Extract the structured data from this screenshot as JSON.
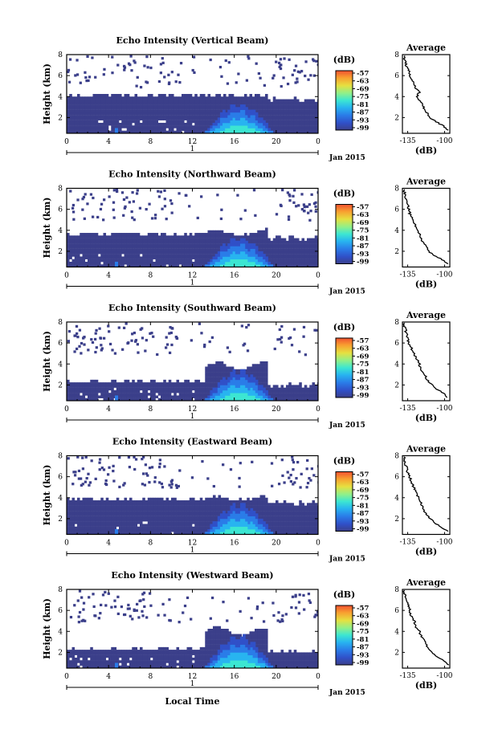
{
  "chart_data": [
    {
      "type": "heatmap",
      "title": "Echo Intensity (Vertical Beam)",
      "ylabel": "Height (km)",
      "x_ticks": [
        "0",
        "4",
        "8",
        "12",
        "16",
        "20",
        "0"
      ],
      "x_range": [
        0,
        24
      ],
      "y_ticks": [
        "2",
        "4",
        "6",
        "8"
      ],
      "y_range": [
        0.5,
        8.0
      ],
      "date_day": "1",
      "date_label": "Jan 2015",
      "colorbar": {
        "title": "(dB)",
        "ticks": [
          "-57",
          "-63",
          "-69",
          "-75",
          "-81",
          "-87",
          "-93",
          "-99"
        ]
      },
      "clutter_top_km": 4.0,
      "burst_top_km": 3.3,
      "profile": {
        "title": "Average",
        "xlabel": "(dB)",
        "x_ticks": [
          "-135",
          "-100"
        ],
        "x_range": [
          -140,
          -95
        ],
        "y_range": [
          0.5,
          8.0
        ],
        "y_ticks": [
          "2",
          "4",
          "6",
          "8"
        ],
        "heights": [
          0.8,
          1.2,
          1.6,
          2.0,
          2.4,
          2.8,
          3.2,
          3.6,
          4.0,
          4.4,
          4.8,
          5.2,
          5.6,
          6.0,
          6.4,
          6.8,
          7.2,
          7.6,
          8.0
        ],
        "values": [
          -97,
          -101,
          -108,
          -114,
          -116,
          -119,
          -121,
          -124,
          -126,
          -124,
          -127,
          -129,
          -131,
          -133,
          -134,
          -136,
          -137,
          -138,
          -139
        ]
      }
    },
    {
      "type": "heatmap",
      "title": "Echo Intensity (Northward Beam)",
      "ylabel": "Height (km)",
      "x_ticks": [
        "0",
        "4",
        "8",
        "12",
        "16",
        "20",
        "0"
      ],
      "x_range": [
        0,
        24
      ],
      "y_ticks": [
        "2",
        "4",
        "6",
        "8"
      ],
      "y_range": [
        0.5,
        8.0
      ],
      "date_day": "1",
      "date_label": "Jan 2015",
      "colorbar": {
        "title": "(dB)",
        "ticks": [
          "-57",
          "-63",
          "-69",
          "-75",
          "-81",
          "-87",
          "-93",
          "-99"
        ]
      },
      "clutter_top_km": 3.5,
      "burst_top_km": 3.3,
      "profile": {
        "title": "Average",
        "xlabel": "(dB)",
        "x_ticks": [
          "-135",
          "-100"
        ],
        "x_range": [
          -140,
          -95
        ],
        "y_range": [
          0.5,
          8.0
        ],
        "y_ticks": [
          "2",
          "4",
          "6",
          "8"
        ],
        "heights": [
          0.8,
          1.2,
          1.6,
          2.0,
          2.4,
          2.8,
          3.2,
          3.6,
          4.0,
          4.4,
          4.8,
          5.2,
          5.6,
          6.0,
          6.4,
          6.8,
          7.2,
          7.6,
          8.0
        ],
        "values": [
          -97,
          -102,
          -110,
          -115,
          -117,
          -120,
          -122,
          -123,
          -126,
          -128,
          -129,
          -131,
          -133,
          -134,
          -135,
          -136,
          -137,
          -138,
          -139
        ]
      }
    },
    {
      "type": "heatmap",
      "title": "Echo Intensity (Southward Beam)",
      "ylabel": "Height (km)",
      "x_ticks": [
        "0",
        "4",
        "8",
        "12",
        "16",
        "20",
        "0"
      ],
      "x_range": [
        0,
        24
      ],
      "y_ticks": [
        "2",
        "4",
        "6",
        "8"
      ],
      "y_range": [
        0.5,
        8.0
      ],
      "date_day": "1",
      "date_label": "Jan 2015",
      "colorbar": {
        "title": "(dB)",
        "ticks": [
          "-57",
          "-63",
          "-69",
          "-75",
          "-81",
          "-87",
          "-93",
          "-99"
        ]
      },
      "clutter_top_km": 2.2,
      "burst_top_km": 3.4,
      "profile": {
        "title": "Average",
        "xlabel": "(dB)",
        "x_ticks": [
          "-135",
          "-100"
        ],
        "x_range": [
          -140,
          -95
        ],
        "y_range": [
          0.5,
          8.0
        ],
        "y_ticks": [
          "2",
          "4",
          "6",
          "8"
        ],
        "heights": [
          0.8,
          1.2,
          1.6,
          2.0,
          2.4,
          2.8,
          3.2,
          3.6,
          4.0,
          4.4,
          4.8,
          5.2,
          5.6,
          6.0,
          6.4,
          6.8,
          7.2,
          7.6,
          8.0
        ],
        "values": [
          -97,
          -101,
          -107,
          -112,
          -116,
          -118,
          -121,
          -123,
          -124,
          -126,
          -128,
          -130,
          -132,
          -134,
          -135,
          -136,
          -137,
          -138,
          -139
        ]
      }
    },
    {
      "type": "heatmap",
      "title": "Echo Intensity (Eastward Beam)",
      "ylabel": "Height (km)",
      "x_ticks": [
        "0",
        "4",
        "8",
        "12",
        "16",
        "20",
        "0"
      ],
      "x_range": [
        0,
        24
      ],
      "y_ticks": [
        "2",
        "4",
        "6",
        "8"
      ],
      "y_range": [
        0.5,
        8.0
      ],
      "date_day": "1",
      "date_label": "Jan 2015",
      "colorbar": {
        "title": "(dB)",
        "ticks": [
          "-57",
          "-63",
          "-69",
          "-75",
          "-81",
          "-87",
          "-93",
          "-99"
        ]
      },
      "clutter_top_km": 3.7,
      "burst_top_km": 3.4,
      "profile": {
        "title": "Average",
        "xlabel": "(dB)",
        "x_ticks": [
          "-135",
          "-100"
        ],
        "x_range": [
          -140,
          -95
        ],
        "y_range": [
          0.5,
          8.0
        ],
        "y_ticks": [
          "2",
          "4",
          "6",
          "8"
        ],
        "heights": [
          0.8,
          1.2,
          1.6,
          2.0,
          2.4,
          2.8,
          3.2,
          3.6,
          4.0,
          4.4,
          4.8,
          5.2,
          5.6,
          6.0,
          6.4,
          6.8,
          7.2,
          7.6,
          8.0
        ],
        "values": [
          -97,
          -103,
          -109,
          -114,
          -117,
          -120,
          -121,
          -123,
          -125,
          -126,
          -128,
          -130,
          -132,
          -133,
          -135,
          -136,
          -137,
          -138,
          -139
        ]
      }
    },
    {
      "type": "heatmap",
      "title": "Echo Intensity (Westward Beam)",
      "ylabel": "Height (km)",
      "xlabel": "Local Time",
      "x_ticks": [
        "0",
        "4",
        "8",
        "12",
        "16",
        "20",
        "0"
      ],
      "x_range": [
        0,
        24
      ],
      "y_ticks": [
        "2",
        "4",
        "6",
        "8"
      ],
      "y_range": [
        0.5,
        8.0
      ],
      "date_day": "1",
      "date_label": "Jan 2015",
      "colorbar": {
        "title": "(dB)",
        "ticks": [
          "-57",
          "-63",
          "-69",
          "-75",
          "-81",
          "-87",
          "-93",
          "-99"
        ]
      },
      "clutter_top_km": 2.2,
      "burst_top_km": 3.6,
      "profile": {
        "title": "Average",
        "xlabel": "(dB)",
        "x_ticks": [
          "-135",
          "-100"
        ],
        "x_range": [
          -140,
          -95
        ],
        "y_range": [
          0.5,
          8.0
        ],
        "y_ticks": [
          "2",
          "4",
          "6",
          "8"
        ],
        "heights": [
          0.8,
          1.2,
          1.6,
          2.0,
          2.4,
          2.8,
          3.2,
          3.6,
          4.0,
          4.4,
          4.8,
          5.2,
          5.6,
          6.0,
          6.4,
          6.8,
          7.2,
          7.6,
          8.0
        ],
        "values": [
          -97,
          -101,
          -107,
          -112,
          -116,
          -118,
          -120,
          -122,
          -124,
          -127,
          -128,
          -130,
          -132,
          -133,
          -134,
          -136,
          -137,
          -138,
          -139
        ]
      }
    }
  ],
  "colors": {
    "background_echo": "#3b3f8a",
    "colorbar_stops": [
      "#3b3f8a",
      "#3050c8",
      "#2a7ce8",
      "#28b4f0",
      "#3ce6d2",
      "#90f08a",
      "#e6e040",
      "#f8a030",
      "#f05030"
    ]
  }
}
